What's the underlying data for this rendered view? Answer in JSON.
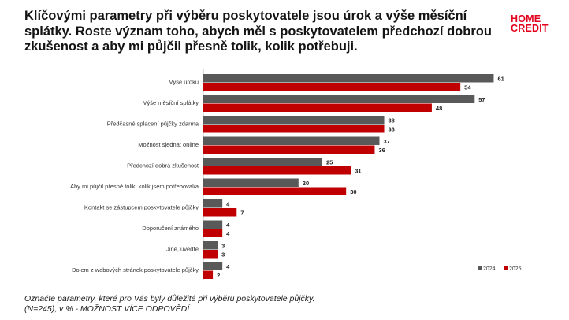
{
  "page": {
    "title": "Klíčovými parametry při výběru poskytovatele jsou úrok a výše měsíční splátky. Roste význam toho, abych měl s poskytovatelem předchozí dobrou zkušenost a aby mi půjčil přesně tolik, kolik potřebuji.",
    "logo_line1": "HOME",
    "logo_line2": "CREDIT",
    "footnote_line1": "Označte parametry, které pro Vás byly důležité při výběru poskytovatele půjčky.",
    "footnote_line2": "(N=245), v % - MOŽNOST VÍCE ODPOVĚDÍ"
  },
  "colors": {
    "series_2024": "#595959",
    "series_2025": "#c00000",
    "axis": "#bfbfbf",
    "logo": "#e3001b"
  },
  "chart_data": {
    "type": "bar",
    "orientation": "horizontal",
    "categories": [
      "Výše úroku",
      "Výše měsíční splátky",
      "Předčasné splacení půjčky zdarma",
      "Možnost sjednat online",
      "Předchozí dobrá zkušenost",
      "Aby mi půjčil přesně tolik, kolik jsem potřeboval/a",
      "Kontakt se zástupcem poskytovatele půjčky",
      "Doporučení známého",
      "Jiné, uveďte",
      "Dojem z webových stránek poskytovatele půjčky"
    ],
    "series": [
      {
        "name": "2024",
        "values": [
          61,
          57,
          38,
          37,
          25,
          20,
          4,
          4,
          3,
          4
        ]
      },
      {
        "name": "2025",
        "values": [
          54,
          48,
          38,
          36,
          31,
          30,
          7,
          4,
          3,
          2
        ]
      }
    ],
    "xlim": [
      0,
      65
    ],
    "title": "",
    "xlabel": "",
    "ylabel": "",
    "data_labels": true,
    "grid": false,
    "legend_position": "bottom-right"
  }
}
